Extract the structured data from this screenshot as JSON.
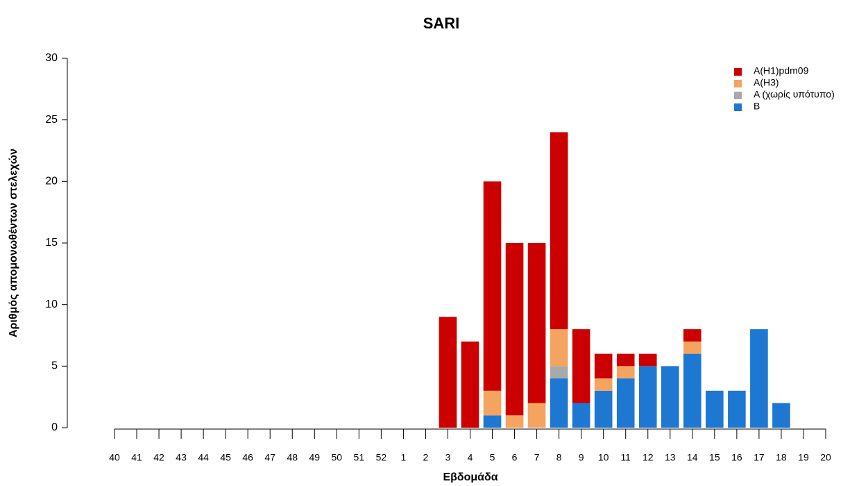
{
  "chart_data": {
    "type": "stacked-bar",
    "title": "SARI",
    "x_label": "Εβδομάδα",
    "y_label": "Αριθμός απομονωθέντων στελεχών",
    "categories": [
      "40",
      "41",
      "42",
      "43",
      "44",
      "45",
      "46",
      "47",
      "48",
      "49",
      "50",
      "51",
      "52",
      "1",
      "2",
      "3",
      "4",
      "5",
      "6",
      "7",
      "8",
      "9",
      "10",
      "11",
      "12",
      "13",
      "14",
      "15",
      "16",
      "17",
      "18",
      "19",
      "20"
    ],
    "series": [
      {
        "name": "A(H1)pdm09",
        "color": "#cc0000",
        "values": [
          0,
          0,
          0,
          0,
          0,
          0,
          0,
          0,
          0,
          0,
          0,
          0,
          0,
          0,
          0,
          9,
          7,
          17,
          14,
          13,
          16,
          6,
          2,
          1,
          1,
          0,
          1,
          0,
          0,
          0,
          0,
          0,
          0
        ]
      },
      {
        "name": "A(H3)",
        "color": "#f4a460",
        "values": [
          0,
          0,
          0,
          0,
          0,
          0,
          0,
          0,
          0,
          0,
          0,
          0,
          0,
          0,
          0,
          0,
          0,
          2,
          1,
          2,
          3,
          0,
          1,
          1,
          0,
          0,
          1,
          0,
          0,
          0,
          0,
          0,
          0
        ]
      },
      {
        "name": "A (χωρίς υπότυπο)",
        "color": "#a9a9a9",
        "values": [
          0,
          0,
          0,
          0,
          0,
          0,
          0,
          0,
          0,
          0,
          0,
          0,
          0,
          0,
          0,
          0,
          0,
          0,
          0,
          0,
          1,
          0,
          0,
          0,
          0,
          0,
          0,
          0,
          0,
          0,
          0,
          0,
          0
        ]
      },
      {
        "name": "B",
        "color": "#1e78d2",
        "values": [
          0,
          0,
          0,
          0,
          0,
          0,
          0,
          0,
          0,
          0,
          0,
          0,
          0,
          0,
          0,
          0,
          0,
          1,
          0,
          0,
          4,
          2,
          3,
          4,
          5,
          5,
          6,
          3,
          3,
          8,
          2,
          0,
          0
        ]
      }
    ],
    "ylim": [
      0,
      30
    ],
    "yticks": [
      0,
      5,
      10,
      15,
      20,
      25,
      30
    ],
    "legend": "top-right"
  }
}
